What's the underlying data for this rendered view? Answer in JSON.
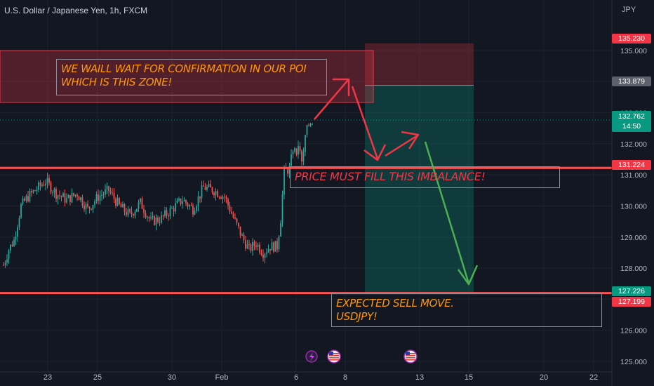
{
  "header": {
    "symbol": "U.S. Dollar / Japanese Yen, 1h, FXCM",
    "currency": "JPY"
  },
  "annotations": {
    "poi_note": [
      "WE WAILL WAIT FOR CONFIRMATION IN OUR POI",
      "WHICH IS THIS ZONE!"
    ],
    "imbalance_note": "PRICE MUST FILL THIS IMBALANCE!",
    "sell_note": [
      "EXPECTED SELL MOVE.",
      "USDJPY!"
    ]
  },
  "price_tags": [
    {
      "value": "135.230",
      "color": "#f23645"
    },
    {
      "value": "133.879",
      "color": "#5d606b"
    },
    {
      "value": "132.762",
      "sub": "14:50",
      "color": "#089981"
    },
    {
      "value": "131.224",
      "color": "#f23645"
    },
    {
      "value": "127.226",
      "color": "#089981"
    },
    {
      "value": "127.199",
      "color": "#f23645"
    }
  ],
  "colors": {
    "up": "#26a69a",
    "down": "#ef5350",
    "level_line": "#ff5252",
    "arrow_red": "#f23645",
    "arrow_green": "#4caf50",
    "zone": "#f23645",
    "stop_zone": "#f23645",
    "target_zone": "#089981"
  },
  "chart_data": {
    "type": "candlestick",
    "symbol": "USDJPY",
    "interval": "1h",
    "ylim": [
      125.0,
      135.2
    ],
    "y_ticks": [
      "125.000",
      "126.000",
      "127.000",
      "128.000",
      "129.000",
      "130.000",
      "131.000",
      "132.000",
      "133.000",
      "134.000",
      "135.000"
    ],
    "x_ticks": [
      "23",
      "25",
      "30",
      "Feb",
      "6",
      "8",
      "13",
      "15",
      "20",
      "22"
    ],
    "close_path": [
      {
        "t": 0,
        "p": 128.1
      },
      {
        "t": 3,
        "p": 128.6
      },
      {
        "t": 6,
        "p": 128.9
      },
      {
        "t": 10,
        "p": 130.0
      },
      {
        "t": 14,
        "p": 130.3
      },
      {
        "t": 18,
        "p": 130.5
      },
      {
        "t": 24,
        "p": 130.8
      },
      {
        "t": 30,
        "p": 130.4
      },
      {
        "t": 36,
        "p": 130.2
      },
      {
        "t": 42,
        "p": 130.4
      },
      {
        "t": 48,
        "p": 129.9
      },
      {
        "t": 54,
        "p": 130.3
      },
      {
        "t": 60,
        "p": 130.5
      },
      {
        "t": 66,
        "p": 130.0
      },
      {
        "t": 72,
        "p": 129.7
      },
      {
        "t": 78,
        "p": 130.1
      },
      {
        "t": 84,
        "p": 129.5
      },
      {
        "t": 90,
        "p": 129.6
      },
      {
        "t": 96,
        "p": 129.9
      },
      {
        "t": 102,
        "p": 130.2
      },
      {
        "t": 108,
        "p": 129.9
      },
      {
        "t": 114,
        "p": 130.6
      },
      {
        "t": 120,
        "p": 130.5
      },
      {
        "t": 126,
        "p": 130.3
      },
      {
        "t": 132,
        "p": 129.5
      },
      {
        "t": 136,
        "p": 129.0
      },
      {
        "t": 140,
        "p": 128.6
      },
      {
        "t": 144,
        "p": 128.8
      },
      {
        "t": 148,
        "p": 128.5
      },
      {
        "t": 152,
        "p": 128.7
      },
      {
        "t": 156,
        "p": 128.7
      },
      {
        "t": 158,
        "p": 129.6
      },
      {
        "t": 160,
        "p": 131.1
      },
      {
        "t": 163,
        "p": 131.2
      },
      {
        "t": 166,
        "p": 132.1
      },
      {
        "t": 170,
        "p": 131.9
      },
      {
        "t": 174,
        "p": 132.6
      },
      {
        "t": 176,
        "p": 132.76
      }
    ],
    "zones": [
      {
        "name": "poi_zone",
        "from": 133.5,
        "to": 134.4
      },
      {
        "name": "stop_loss_zone",
        "from": 133.879,
        "to": 135.23
      },
      {
        "name": "take_profit_zone",
        "from": 127.226,
        "to": 133.879
      }
    ],
    "levels": [
      131.224,
      127.199
    ],
    "events": [
      "lightning-event",
      "us-flag-event",
      "us-flag-event"
    ]
  }
}
